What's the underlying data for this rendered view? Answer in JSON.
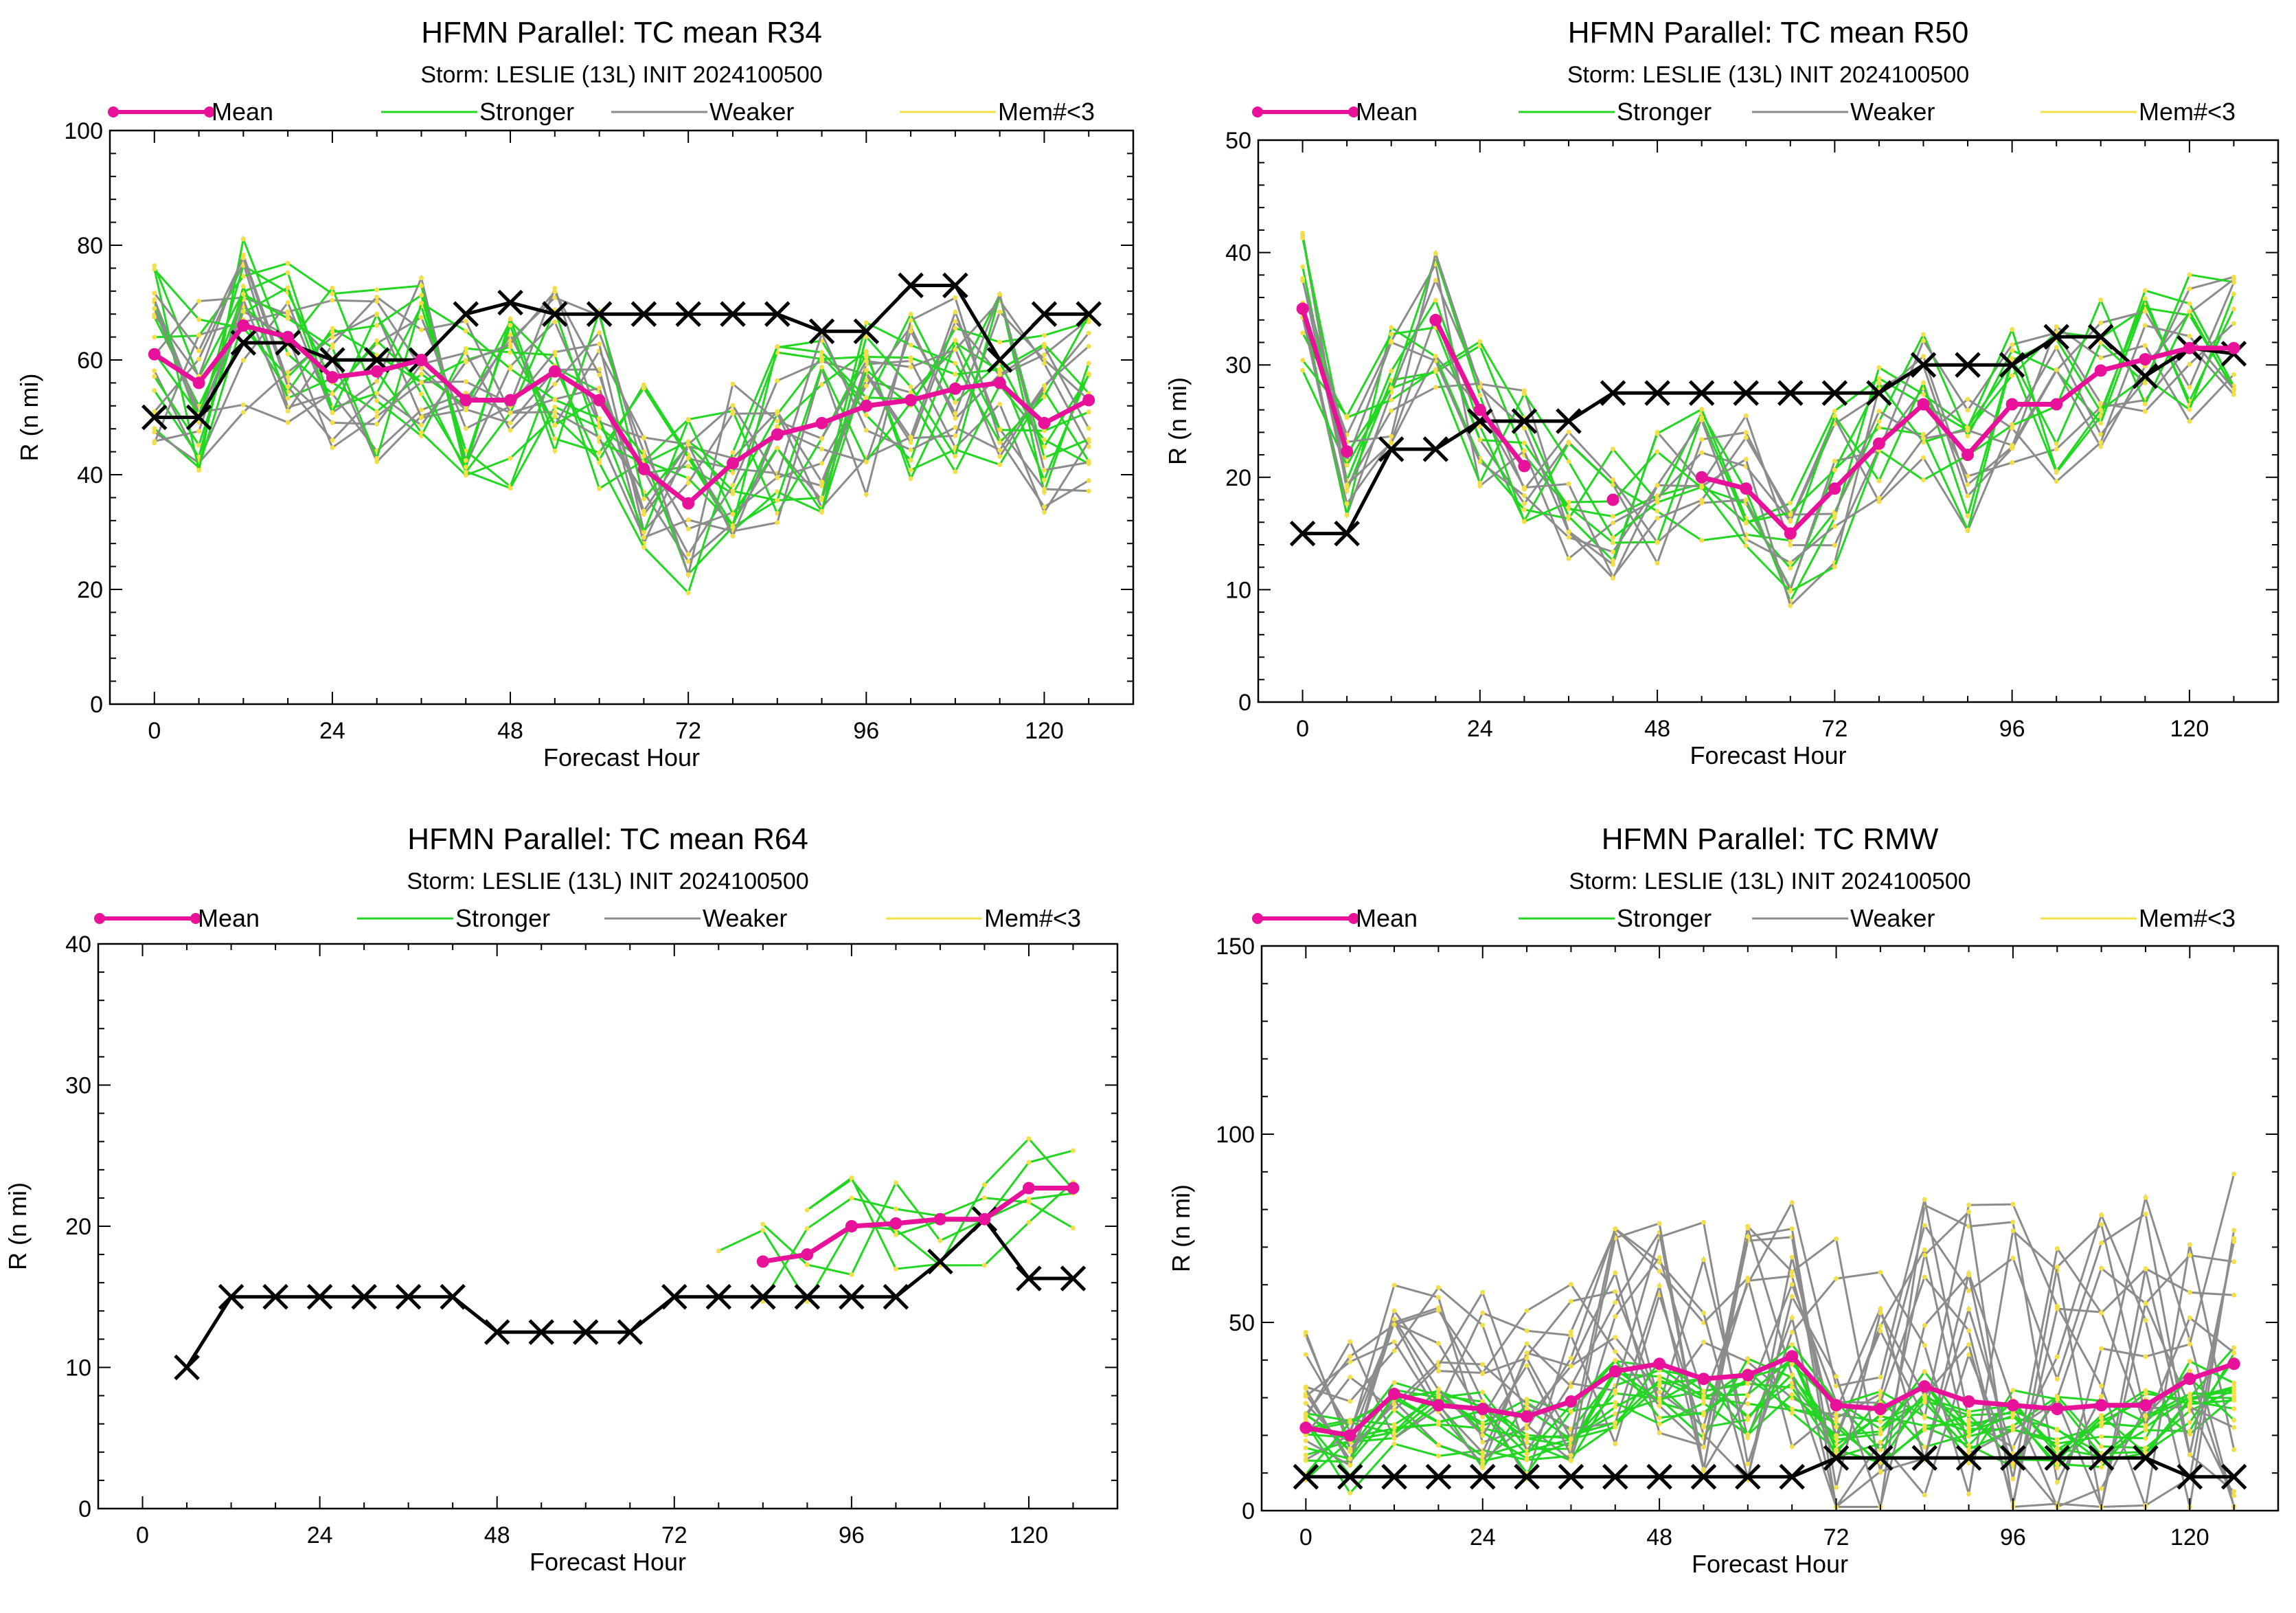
{
  "colors": {
    "mean": "#e8129a",
    "stronger": "#22d622",
    "weaker": "#8c8c8c",
    "members_lt3": "#f2df4a",
    "observed": "#000000"
  },
  "legend": {
    "mean": "Mean",
    "stronger": "Stronger",
    "weaker": "Weaker",
    "members_lt3": "Mem#<3"
  },
  "chart_data": [
    {
      "type": "line",
      "title": "HFMN Parallel: TC mean R34",
      "subtitle": "Storm: LESLIE (13L) INIT 2024100500",
      "xlabel": "Forecast Hour",
      "ylabel": "R (n mi)",
      "xlim": [
        -6,
        132
      ],
      "ylim": [
        0,
        100
      ],
      "xticks": [
        0,
        24,
        48,
        72,
        96,
        120
      ],
      "yticks": [
        0,
        20,
        40,
        60,
        80,
        100
      ],
      "legend_placement": "top",
      "series": [
        {
          "name": "Mean",
          "x": [
            0,
            6,
            12,
            18,
            24,
            30,
            36,
            42,
            48,
            54,
            60,
            66,
            72,
            78,
            84,
            90,
            96,
            102,
            108,
            114,
            120,
            126
          ],
          "y": [
            61,
            56,
            66,
            64,
            57,
            58,
            60,
            53,
            53,
            58,
            53,
            41,
            35,
            42,
            47,
            49,
            52,
            53,
            55,
            56,
            49,
            53
          ]
        },
        {
          "x": [
            0,
            6,
            12,
            18,
            24,
            30,
            36,
            42,
            48,
            54,
            60,
            66,
            72,
            78,
            84,
            90,
            96,
            102,
            108,
            114,
            120,
            126
          ],
          "y": [
            50,
            50,
            63,
            63,
            60,
            60,
            60,
            68,
            70,
            68,
            68,
            68,
            68,
            68,
            68,
            65,
            65,
            73,
            73,
            60,
            68,
            68
          ]
        }
      ]
    },
    {
      "type": "line",
      "title": "HFMN Parallel: TC mean R50",
      "subtitle": "Storm: LESLIE (13L) INIT 2024100500",
      "xlabel": "Forecast Hour",
      "ylabel": "R (n mi)",
      "xlim": [
        -6,
        132
      ],
      "ylim": [
        0,
        50
      ],
      "xticks": [
        0,
        24,
        48,
        72,
        96,
        120
      ],
      "yticks": [
        0,
        10,
        20,
        30,
        40,
        50
      ],
      "legend_placement": "top",
      "series": [
        {
          "name": "Mean",
          "segments": [
            {
              "x": [
                0,
                6
              ],
              "y": [
                35,
                22.3
              ]
            },
            {
              "x": [
                18,
                24,
                30
              ],
              "y": [
                34,
                26,
                21
              ]
            },
            {
              "x": [
                42
              ],
              "y": [
                18
              ]
            },
            {
              "x": [
                54,
                60,
                66,
                72,
                78,
                84,
                90,
                96,
                102,
                108,
                114,
                120,
                126
              ],
              "y": [
                20,
                19,
                15,
                19,
                23,
                26.5,
                22,
                26.5,
                26.5,
                29.5,
                30.5,
                31.5,
                31.5
              ]
            }
          ]
        },
        {
          "x": [
            0,
            6,
            12,
            18,
            24,
            30,
            36,
            42,
            48,
            54,
            60,
            66,
            72,
            78,
            84,
            90,
            96,
            102,
            108,
            114,
            120,
            126
          ],
          "y": [
            15,
            15,
            22.5,
            22.5,
            25,
            25,
            25,
            27.5,
            27.5,
            27.5,
            27.5,
            27.5,
            27.5,
            27.5,
            30,
            30,
            30,
            32.5,
            32.5,
            29,
            31.5,
            31
          ]
        }
      ]
    },
    {
      "type": "line",
      "title": "HFMN Parallel: TC mean R64",
      "subtitle": "Storm: LESLIE (13L) INIT 2024100500",
      "xlabel": "Forecast Hour",
      "ylabel": "R (n mi)",
      "xlim": [
        -6,
        132
      ],
      "ylim": [
        0,
        40
      ],
      "xticks": [
        0,
        24,
        48,
        72,
        96,
        120
      ],
      "yticks": [
        0,
        10,
        20,
        30,
        40
      ],
      "legend_placement": "top",
      "series": [
        {
          "name": "Mean",
          "x": [
            84,
            90,
            96,
            102,
            108,
            114,
            120,
            126
          ],
          "y": [
            17.5,
            18,
            20,
            20.2,
            20.5,
            20.5,
            22.7,
            22.7
          ]
        },
        {
          "x": [
            6,
            12,
            18,
            24,
            30,
            36,
            42,
            48,
            54,
            60,
            66,
            72,
            78,
            84,
            90,
            96,
            102,
            108,
            114,
            120,
            126
          ],
          "y": [
            10,
            15,
            15,
            15,
            15,
            15,
            15,
            12.5,
            12.5,
            12.5,
            12.5,
            15,
            15,
            15,
            15,
            15,
            15,
            17.5,
            20.5,
            16.3,
            16.3
          ]
        }
      ]
    },
    {
      "type": "line",
      "title": "HFMN Parallel: TC RMW",
      "subtitle": "Storm: LESLIE (13L) INIT 2024100500",
      "xlabel": "Forecast Hour",
      "ylabel": "R (n mi)",
      "xlim": [
        -6,
        132
      ],
      "ylim": [
        0,
        150
      ],
      "xticks": [
        0,
        24,
        48,
        72,
        96,
        120
      ],
      "yticks": [
        0,
        50,
        100,
        150
      ],
      "legend_placement": "top",
      "series": [
        {
          "name": "Mean",
          "x": [
            0,
            6,
            12,
            18,
            24,
            30,
            36,
            42,
            48,
            54,
            60,
            66,
            72,
            78,
            84,
            90,
            96,
            102,
            108,
            114,
            120,
            126
          ],
          "y": [
            22,
            20,
            31,
            28,
            27,
            25,
            29,
            37,
            39,
            35,
            36,
            41,
            28,
            27,
            33,
            29,
            28,
            27,
            28,
            28,
            35,
            39
          ]
        },
        {
          "x": [
            0,
            6,
            12,
            18,
            24,
            30,
            36,
            42,
            48,
            54,
            60,
            66,
            72,
            78,
            84,
            90,
            96,
            102,
            108,
            114,
            120,
            126
          ],
          "y": [
            9,
            9,
            9,
            9,
            9,
            9,
            9,
            9,
            9,
            9,
            9,
            9,
            14,
            14,
            14,
            14,
            14,
            14,
            14,
            14,
            9,
            9
          ]
        }
      ]
    }
  ]
}
